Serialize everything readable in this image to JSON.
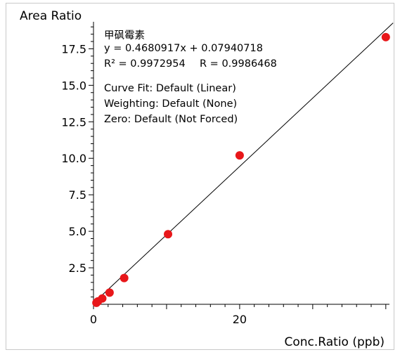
{
  "chart_data": {
    "type": "scatter",
    "ylabel": "Area Ratio",
    "xlabel": "Conc.Ratio (ppb)",
    "xlim": [
      0,
      40.5
    ],
    "ylim": [
      0,
      19.35
    ],
    "x_ticks": [
      0,
      20
    ],
    "y_ticks": [
      2.5,
      5.0,
      7.5,
      10.0,
      12.5,
      15.0,
      17.5
    ],
    "y_tick_labels": [
      "2.5",
      "5.0",
      "7.5",
      "10.0",
      "12.5",
      "15.0",
      "17.5"
    ],
    "x_tick_labels": [
      "0",
      "20"
    ],
    "points": [
      {
        "x": 0.4,
        "y": 0.1
      },
      {
        "x": 0.6,
        "y": 0.2
      },
      {
        "x": 1.2,
        "y": 0.4
      },
      {
        "x": 2.2,
        "y": 0.8
      },
      {
        "x": 4.2,
        "y": 1.8
      },
      {
        "x": 10.2,
        "y": 4.8
      },
      {
        "x": 20.0,
        "y": 10.2
      },
      {
        "x": 40.0,
        "y": 18.3
      }
    ],
    "fit": {
      "slope": 0.4680917,
      "intercept": 0.07940718
    },
    "annotations": {
      "compound": "甲砜霉素",
      "equation": "y = 0.4680917x + 0.07940718",
      "r2": "R² = 0.9972954",
      "r": "R = 0.9986468",
      "curve_fit": "Curve Fit: Default (Linear)",
      "weighting": "Weighting: Default (None)",
      "zero": "Zero: Default (Not Forced)"
    },
    "colors": {
      "points": "#e8171a",
      "line": "#000000",
      "axis": "#000000"
    }
  }
}
